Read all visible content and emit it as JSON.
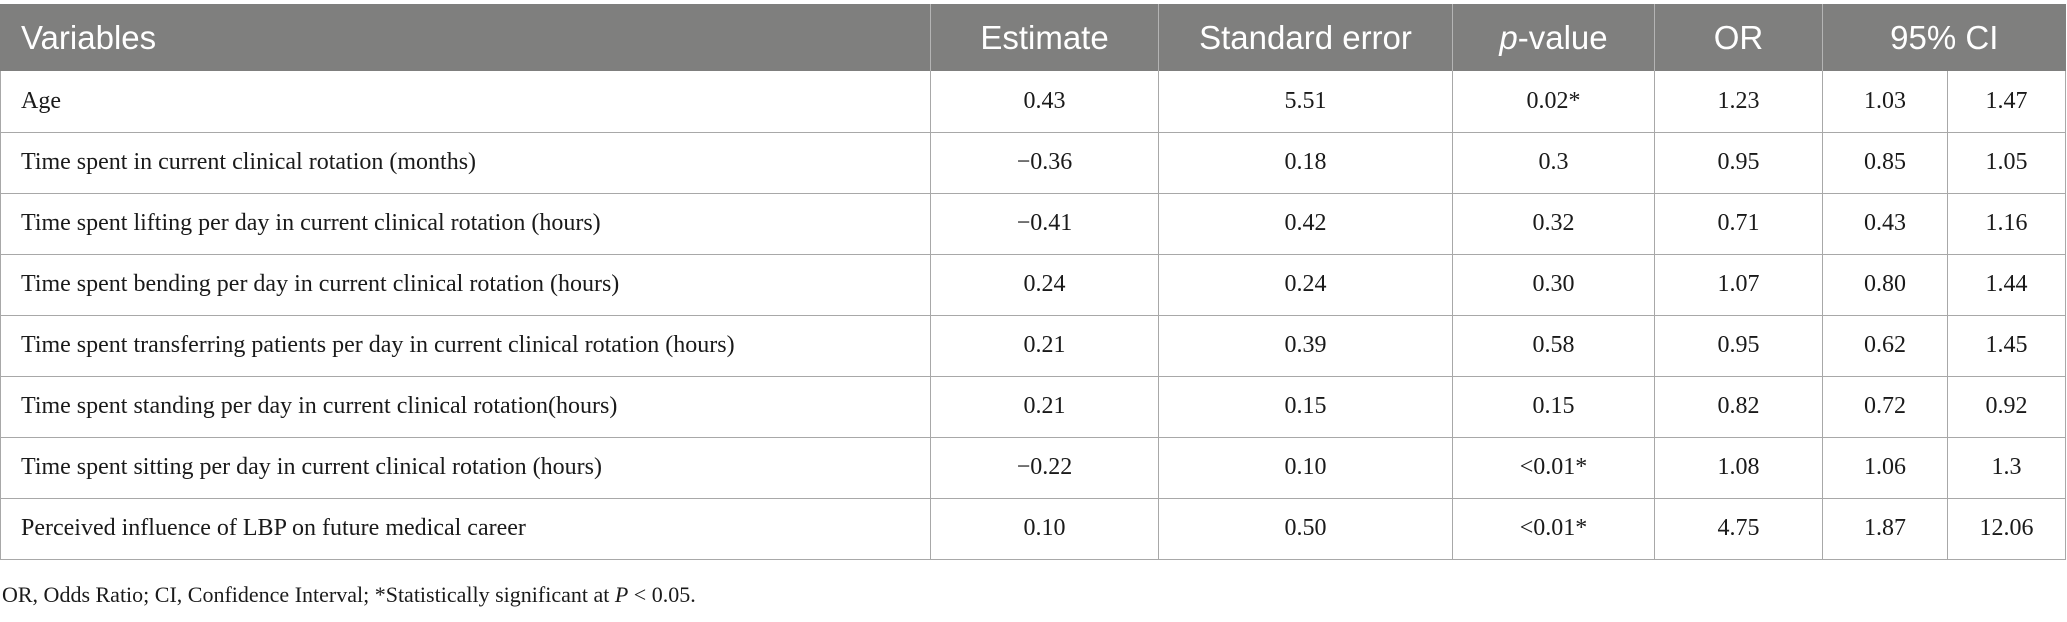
{
  "table": {
    "headers": {
      "variables": "Variables",
      "estimate": "Estimate",
      "standard_error": "Standard error",
      "p_value_italic": "p",
      "p_value_rest": "-value",
      "or": "OR",
      "ci": "95% CI"
    },
    "rows": [
      {
        "variable": "Age",
        "estimate": "0.43",
        "se": "5.51",
        "p": "0.02*",
        "or": "1.23",
        "ci_low": "1.03",
        "ci_high": "1.47"
      },
      {
        "variable": "Time spent in current clinical rotation (months)",
        "estimate": "−0.36",
        "se": "0.18",
        "p": "0.3",
        "or": "0.95",
        "ci_low": "0.85",
        "ci_high": "1.05"
      },
      {
        "variable": "Time spent lifting per day in current clinical rotation (hours)",
        "estimate": "−0.41",
        "se": "0.42",
        "p": "0.32",
        "or": "0.71",
        "ci_low": "0.43",
        "ci_high": "1.16"
      },
      {
        "variable": "Time spent bending per day in current clinical rotation (hours)",
        "estimate": "0.24",
        "se": "0.24",
        "p": "0.30",
        "or": "1.07",
        "ci_low": "0.80",
        "ci_high": "1.44"
      },
      {
        "variable": "Time spent transferring patients per day in current clinical rotation (hours)",
        "estimate": "0.21",
        "se": "0.39",
        "p": "0.58",
        "or": "0.95",
        "ci_low": "0.62",
        "ci_high": "1.45"
      },
      {
        "variable": "Time spent standing per day in current clinical rotation(hours)",
        "estimate": "0.21",
        "se": "0.15",
        "p": "0.15",
        "or": "0.82",
        "ci_low": "0.72",
        "ci_high": "0.92"
      },
      {
        "variable": "Time spent sitting per day in current clinical rotation (hours)",
        "estimate": "−0.22",
        "se": "0.10",
        "p": "<0.01*",
        "or": "1.08",
        "ci_low": "1.06",
        "ci_high": "1.3"
      },
      {
        "variable": "Perceived influence of LBP on future medical career",
        "estimate": "0.10",
        "se": "0.50",
        "p": "<0.01*",
        "or": "4.75",
        "ci_low": "1.87",
        "ci_high": "12.06"
      }
    ]
  },
  "footnote": {
    "prefix": "OR, Odds Ratio; CI, Confidence Interval; *Statistically significant at ",
    "italic": "P",
    "suffix": " < 0.05."
  },
  "colors": {
    "header_bg": "#7f7f7e",
    "header_text": "#ffffff",
    "grid": "#a8a8a8"
  }
}
